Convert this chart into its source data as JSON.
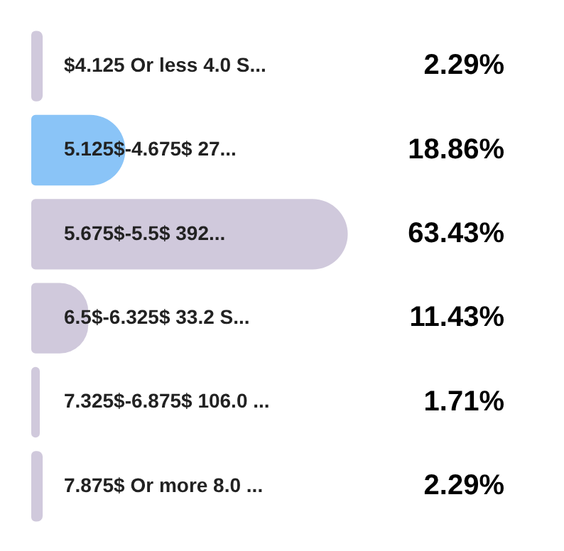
{
  "chart_data": {
    "type": "bar",
    "orientation": "horizontal",
    "categories": [
      "$4.125 Or less 4.0 S...",
      "5.125$-4.675$ 27...",
      "5.675$-5.5$ 392...",
      "6.5$-6.325$ 33.2 S...",
      "7.325$-6.875$ 106.0 ...",
      "7.875$ Or more 8.0 ..."
    ],
    "values": [
      2.29,
      18.86,
      63.43,
      11.43,
      1.71,
      2.29
    ],
    "colors": [
      "#d0c9dc",
      "#8ac4f7",
      "#d0c9dc",
      "#d0c9dc",
      "#d0c9dc",
      "#d0c9dc"
    ],
    "value_labels": [
      "2.29%",
      "18.86%",
      "63.43%",
      "11.43%",
      "1.71%",
      "2.29%"
    ]
  }
}
